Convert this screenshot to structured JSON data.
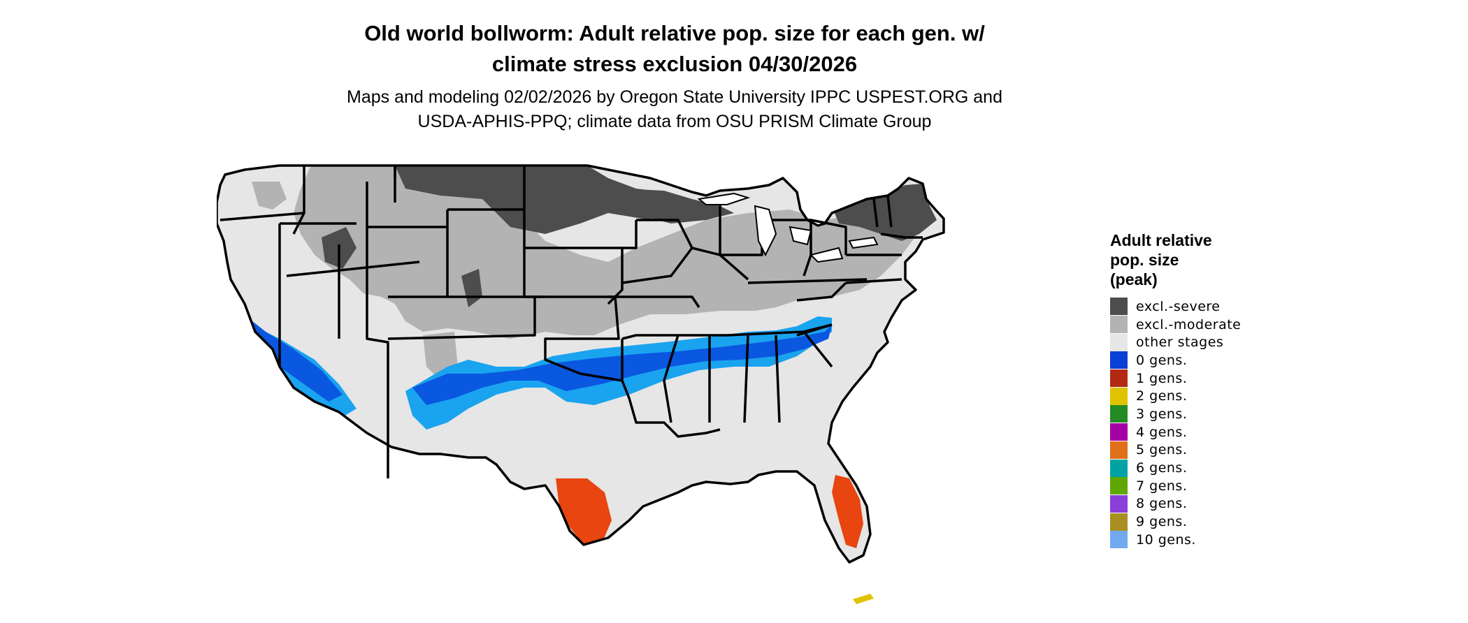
{
  "title": "Old world bollworm: Adult relative pop. size for each gen. w/\nclimate stress exclusion 04/30/2026",
  "subtitle": "Maps and modeling 02/02/2026 by Oregon State University IPPC USPEST.ORG and\nUSDA-APHIS-PPQ; climate data from OSU PRISM Climate Group",
  "legend": {
    "title": "Adult relative\npop. size\n(peak)",
    "items": [
      {
        "label": "excl.-severe",
        "color": "#4d4d4d"
      },
      {
        "label": "excl.-moderate",
        "color": "#b3b3b3"
      },
      {
        "label": "other stages",
        "color": "#e6e6e6"
      },
      {
        "label": "0 gens.",
        "color": "#0a3fd8"
      },
      {
        "label": "1 gens.",
        "color": "#b22a12"
      },
      {
        "label": "2 gens.",
        "color": "#e0c300"
      },
      {
        "label": "3 gens.",
        "color": "#238b22"
      },
      {
        "label": "4 gens.",
        "color": "#a400a4"
      },
      {
        "label": "5 gens.",
        "color": "#e0701a"
      },
      {
        "label": "6 gens.",
        "color": "#00a3a3"
      },
      {
        "label": "7 gens.",
        "color": "#5fa800"
      },
      {
        "label": "8 gens.",
        "color": "#8a3fd8"
      },
      {
        "label": "9 gens.",
        "color": "#a89020"
      },
      {
        "label": "10 gens.",
        "color": "#72aaf0"
      }
    ]
  },
  "map_colors": {
    "blue_light": "#1aa3ef",
    "blue_mid": "#0a57e0",
    "red_orange": "#e84510",
    "border": "#000000"
  }
}
